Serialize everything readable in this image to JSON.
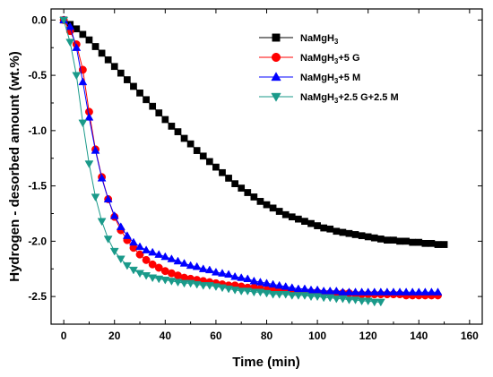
{
  "chart_data": {
    "type": "line",
    "xlabel": "Time (min)",
    "ylabel": "Hydrogen - desorbed amount (wt.%)",
    "xlim": [
      -5,
      165
    ],
    "ylim": [
      -2.75,
      0.1
    ],
    "xticks": [
      0,
      20,
      40,
      60,
      80,
      100,
      120,
      140,
      160
    ],
    "yticks": [
      0.0,
      -0.5,
      -1.0,
      -1.5,
      -2.0,
      -2.5
    ],
    "ytick_labels": [
      "0.0",
      "-0.5",
      "-1.0",
      "-1.5",
      "-2.0",
      "-2.5"
    ],
    "grid": false,
    "legend_position": "top-right",
    "series": [
      {
        "name": "NaMgH3",
        "legend_main": "NaMgH",
        "legend_sub": "3",
        "legend_suffix": "",
        "color": "#000000",
        "marker": "square",
        "x": [
          0,
          2.5,
          5,
          7.5,
          10,
          12.5,
          15,
          17.5,
          20,
          22.5,
          25,
          27.5,
          30,
          32.5,
          35,
          37.5,
          40,
          42.5,
          45,
          47.5,
          50,
          52.5,
          55,
          57.5,
          60,
          62.5,
          65,
          67.5,
          70,
          72.5,
          75,
          77.5,
          80,
          82.5,
          85,
          87.5,
          90,
          92.5,
          95,
          97.5,
          100,
          102.5,
          105,
          107.5,
          110,
          112.5,
          115,
          117.5,
          120,
          122.5,
          125,
          127.5,
          130,
          132.5,
          135,
          137.5,
          140,
          142.5,
          145,
          147.5,
          150
        ],
        "y": [
          0.0,
          -0.04,
          -0.08,
          -0.13,
          -0.18,
          -0.24,
          -0.3,
          -0.36,
          -0.42,
          -0.48,
          -0.54,
          -0.6,
          -0.66,
          -0.72,
          -0.78,
          -0.84,
          -0.9,
          -0.96,
          -1.01,
          -1.07,
          -1.12,
          -1.18,
          -1.23,
          -1.28,
          -1.33,
          -1.38,
          -1.43,
          -1.48,
          -1.52,
          -1.56,
          -1.6,
          -1.64,
          -1.67,
          -1.7,
          -1.73,
          -1.76,
          -1.78,
          -1.8,
          -1.82,
          -1.84,
          -1.86,
          -1.88,
          -1.89,
          -1.91,
          -1.92,
          -1.93,
          -1.94,
          -1.95,
          -1.96,
          -1.97,
          -1.98,
          -1.99,
          -1.99,
          -2.0,
          -2.0,
          -2.01,
          -2.01,
          -2.02,
          -2.02,
          -2.03,
          -2.03
        ]
      },
      {
        "name": "NaMgH3+5 G",
        "legend_main": "NaMgH",
        "legend_sub": "3",
        "legend_suffix": "+5 G",
        "color": "#ff0000",
        "marker": "circle",
        "x": [
          0,
          2.5,
          5,
          7.5,
          10,
          12.5,
          15,
          17.5,
          20,
          22.5,
          25,
          27.5,
          30,
          32.5,
          35,
          37.5,
          40,
          42.5,
          45,
          47.5,
          50,
          52.5,
          55,
          57.5,
          60,
          62.5,
          65,
          67.5,
          70,
          72.5,
          75,
          77.5,
          80,
          82.5,
          85,
          87.5,
          90,
          92.5,
          95,
          97.5,
          100,
          102.5,
          105,
          107.5,
          110,
          112.5,
          115,
          117.5,
          120,
          122.5,
          125,
          127.5,
          130,
          132.5,
          135,
          137.5,
          140,
          142.5,
          145,
          147.5
        ],
        "y": [
          0.0,
          -0.1,
          -0.22,
          -0.45,
          -0.83,
          -1.17,
          -1.42,
          -1.62,
          -1.78,
          -1.9,
          -1.99,
          -2.06,
          -2.12,
          -2.17,
          -2.21,
          -2.24,
          -2.27,
          -2.29,
          -2.31,
          -2.33,
          -2.34,
          -2.35,
          -2.36,
          -2.37,
          -2.38,
          -2.39,
          -2.4,
          -2.4,
          -2.41,
          -2.42,
          -2.42,
          -2.43,
          -2.44,
          -2.44,
          -2.45,
          -2.45,
          -2.45,
          -2.46,
          -2.46,
          -2.46,
          -2.46,
          -2.47,
          -2.47,
          -2.47,
          -2.47,
          -2.47,
          -2.48,
          -2.48,
          -2.48,
          -2.48,
          -2.48,
          -2.48,
          -2.48,
          -2.48,
          -2.49,
          -2.49,
          -2.49,
          -2.49,
          -2.49,
          -2.49
        ]
      },
      {
        "name": "NaMgH3+5 M",
        "legend_main": "NaMgH",
        "legend_sub": "3",
        "legend_suffix": "+5 M",
        "color": "#0000ff",
        "marker": "triangle-up",
        "x": [
          0,
          2.5,
          5,
          7.5,
          10,
          12.5,
          15,
          17.5,
          20,
          22.5,
          25,
          27.5,
          30,
          32.5,
          35,
          37.5,
          40,
          42.5,
          45,
          47.5,
          50,
          52.5,
          55,
          57.5,
          60,
          62.5,
          65,
          67.5,
          70,
          72.5,
          75,
          77.5,
          80,
          82.5,
          85,
          87.5,
          90,
          92.5,
          95,
          97.5,
          100,
          102.5,
          105,
          107.5,
          110,
          112.5,
          115,
          117.5,
          120,
          122.5,
          125,
          127.5,
          130,
          132.5,
          135,
          137.5,
          140,
          142.5,
          145,
          147.5
        ],
        "y": [
          0.0,
          -0.06,
          -0.25,
          -0.56,
          -0.88,
          -1.18,
          -1.43,
          -1.62,
          -1.77,
          -1.87,
          -1.95,
          -2.01,
          -2.05,
          -2.08,
          -2.1,
          -2.12,
          -2.14,
          -2.16,
          -2.18,
          -2.2,
          -2.22,
          -2.23,
          -2.25,
          -2.26,
          -2.28,
          -2.29,
          -2.3,
          -2.32,
          -2.33,
          -2.34,
          -2.36,
          -2.37,
          -2.38,
          -2.39,
          -2.4,
          -2.41,
          -2.42,
          -2.43,
          -2.43,
          -2.44,
          -2.44,
          -2.45,
          -2.45,
          -2.45,
          -2.46,
          -2.46,
          -2.46,
          -2.46,
          -2.46,
          -2.46,
          -2.46,
          -2.46,
          -2.46,
          -2.46,
          -2.46,
          -2.46,
          -2.46,
          -2.46,
          -2.46,
          -2.46
        ]
      },
      {
        "name": "NaMgH3+2.5 G+2.5 M",
        "legend_main": "NaMgH",
        "legend_sub": "3",
        "legend_suffix": "+2.5 G+2.5 M",
        "color": "#1a9a8a",
        "marker": "triangle-down",
        "x": [
          0,
          2.5,
          5,
          7.5,
          10,
          12.5,
          15,
          17.5,
          20,
          22.5,
          25,
          27.5,
          30,
          32.5,
          35,
          37.5,
          40,
          42.5,
          45,
          47.5,
          50,
          52.5,
          55,
          57.5,
          60,
          62.5,
          65,
          67.5,
          70,
          72.5,
          75,
          77.5,
          80,
          82.5,
          85,
          87.5,
          90,
          92.5,
          95,
          97.5,
          100,
          102.5,
          105,
          107.5,
          110,
          112.5,
          115,
          117.5,
          120,
          122.5,
          125
        ],
        "y": [
          0.0,
          -0.2,
          -0.5,
          -0.93,
          -1.3,
          -1.6,
          -1.82,
          -1.98,
          -2.09,
          -2.16,
          -2.22,
          -2.26,
          -2.29,
          -2.31,
          -2.33,
          -2.34,
          -2.35,
          -2.36,
          -2.37,
          -2.38,
          -2.38,
          -2.39,
          -2.4,
          -2.4,
          -2.41,
          -2.42,
          -2.43,
          -2.44,
          -2.45,
          -2.45,
          -2.46,
          -2.46,
          -2.47,
          -2.48,
          -2.48,
          -2.48,
          -2.49,
          -2.49,
          -2.49,
          -2.5,
          -2.5,
          -2.51,
          -2.51,
          -2.52,
          -2.52,
          -2.53,
          -2.53,
          -2.54,
          -2.54,
          -2.55,
          -2.55
        ]
      }
    ]
  }
}
